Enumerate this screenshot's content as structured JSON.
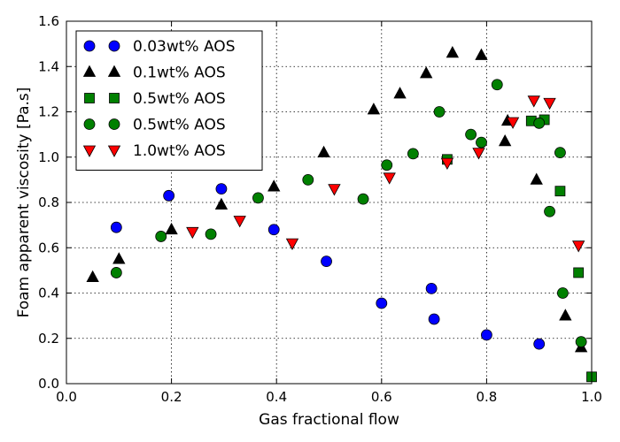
{
  "chart_data": {
    "type": "scatter",
    "xlabel": "Gas fractional flow",
    "ylabel": "Foam apparent viscosity [Pa.s]",
    "xlim": [
      0.0,
      1.0
    ],
    "ylim": [
      0.0,
      1.6
    ],
    "x_ticks": [
      "0.0",
      "0.2",
      "0.4",
      "0.6",
      "0.8",
      "1.0"
    ],
    "y_ticks": [
      "0.0",
      "0.2",
      "0.4",
      "0.6",
      "0.8",
      "1.0",
      "1.2",
      "1.4",
      "1.6"
    ],
    "grid": true,
    "legend_position": "top-left",
    "series": [
      {
        "name": "0.03wt% AOS",
        "marker": "circle",
        "color": "#0000ff",
        "points": [
          [
            0.095,
            0.69
          ],
          [
            0.195,
            0.83
          ],
          [
            0.295,
            0.86
          ],
          [
            0.395,
            0.68
          ],
          [
            0.495,
            0.54
          ],
          [
            0.6,
            0.355
          ],
          [
            0.695,
            0.42
          ],
          [
            0.7,
            0.285
          ],
          [
            0.8,
            0.215
          ],
          [
            0.9,
            0.175
          ]
        ]
      },
      {
        "name": "0.1wt% AOS",
        "marker": "triangle-up",
        "color": "#000000",
        "points": [
          [
            0.05,
            0.47
          ],
          [
            0.1,
            0.55
          ],
          [
            0.2,
            0.68
          ],
          [
            0.295,
            0.79
          ],
          [
            0.395,
            0.87
          ],
          [
            0.49,
            1.02
          ],
          [
            0.585,
            1.21
          ],
          [
            0.635,
            1.28
          ],
          [
            0.685,
            1.37
          ],
          [
            0.735,
            1.46
          ],
          [
            0.79,
            1.45
          ],
          [
            0.835,
            1.07
          ],
          [
            0.84,
            1.16
          ],
          [
            0.895,
            0.9
          ],
          [
            0.95,
            0.3
          ],
          [
            0.98,
            0.16
          ]
        ]
      },
      {
        "name": "0.5wt% AOS",
        "marker": "square",
        "color": "#008000",
        "points": [
          [
            0.725,
            0.99
          ],
          [
            0.885,
            1.16
          ],
          [
            0.91,
            1.165
          ],
          [
            0.94,
            0.85
          ],
          [
            0.975,
            0.49
          ],
          [
            1.0,
            0.03
          ]
        ]
      },
      {
        "name": "0.5wt% AOS",
        "marker": "circle",
        "color": "#008000",
        "points": [
          [
            0.095,
            0.49
          ],
          [
            0.18,
            0.65
          ],
          [
            0.275,
            0.66
          ],
          [
            0.365,
            0.82
          ],
          [
            0.46,
            0.9
          ],
          [
            0.565,
            0.815
          ],
          [
            0.61,
            0.965
          ],
          [
            0.66,
            1.015
          ],
          [
            0.71,
            1.2
          ],
          [
            0.77,
            1.1
          ],
          [
            0.79,
            1.065
          ],
          [
            0.82,
            1.32
          ],
          [
            0.9,
            1.15
          ],
          [
            0.92,
            0.76
          ],
          [
            0.94,
            1.02
          ],
          [
            0.945,
            0.4
          ],
          [
            0.98,
            0.185
          ]
        ]
      },
      {
        "name": "1.0wt% AOS",
        "marker": "triangle-down",
        "color": "#ff0000",
        "points": [
          [
            0.24,
            0.67
          ],
          [
            0.33,
            0.72
          ],
          [
            0.43,
            0.62
          ],
          [
            0.51,
            0.86
          ],
          [
            0.615,
            0.91
          ],
          [
            0.725,
            0.975
          ],
          [
            0.785,
            1.02
          ],
          [
            0.85,
            1.155
          ],
          [
            0.89,
            1.25
          ],
          [
            0.92,
            1.24
          ],
          [
            0.975,
            0.61
          ]
        ]
      }
    ]
  }
}
